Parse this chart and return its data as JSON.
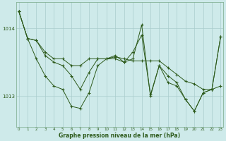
{
  "background_color": "#ceeaea",
  "grid_color": "#aacccc",
  "line_color": "#2d5a1b",
  "xlabel": "Graphe pression niveau de la mer (hPa)",
  "yticks": [
    1013,
    1014
  ],
  "xlim": [
    -0.3,
    23.3
  ],
  "ylim": [
    1012.55,
    1014.38
  ],
  "hours": [
    0,
    1,
    2,
    3,
    4,
    5,
    6,
    7,
    8,
    9,
    10,
    11,
    12,
    13,
    14,
    15,
    16,
    17,
    18,
    19,
    20,
    21,
    22,
    23
  ],
  "line1": [
    1014.25,
    1013.85,
    1013.55,
    1013.3,
    1013.15,
    1013.1,
    1012.85,
    1012.82,
    1013.05,
    1013.45,
    1013.55,
    1013.6,
    1013.5,
    1013.65,
    1013.9,
    1013.02,
    1013.45,
    1013.3,
    1013.2,
    1012.95,
    1012.78,
    1013.05,
    1013.1,
    1013.15
  ],
  "line2": [
    1014.25,
    1013.85,
    1013.82,
    1013.6,
    1013.5,
    1013.45,
    1013.3,
    1013.1,
    1013.35,
    1013.55,
    1013.55,
    1013.55,
    1013.5,
    1013.55,
    1014.05,
    1013.0,
    1013.45,
    1013.2,
    1013.15,
    1012.95,
    1012.78,
    1013.05,
    1013.1,
    1013.88
  ],
  "line3": [
    1014.25,
    1013.85,
    1013.82,
    1013.65,
    1013.55,
    1013.55,
    1013.45,
    1013.45,
    1013.55,
    1013.55,
    1013.55,
    1013.58,
    1013.55,
    1013.52,
    1013.52,
    1013.52,
    1013.52,
    1013.42,
    1013.32,
    1013.22,
    1013.18,
    1013.1,
    1013.1,
    1013.88
  ]
}
